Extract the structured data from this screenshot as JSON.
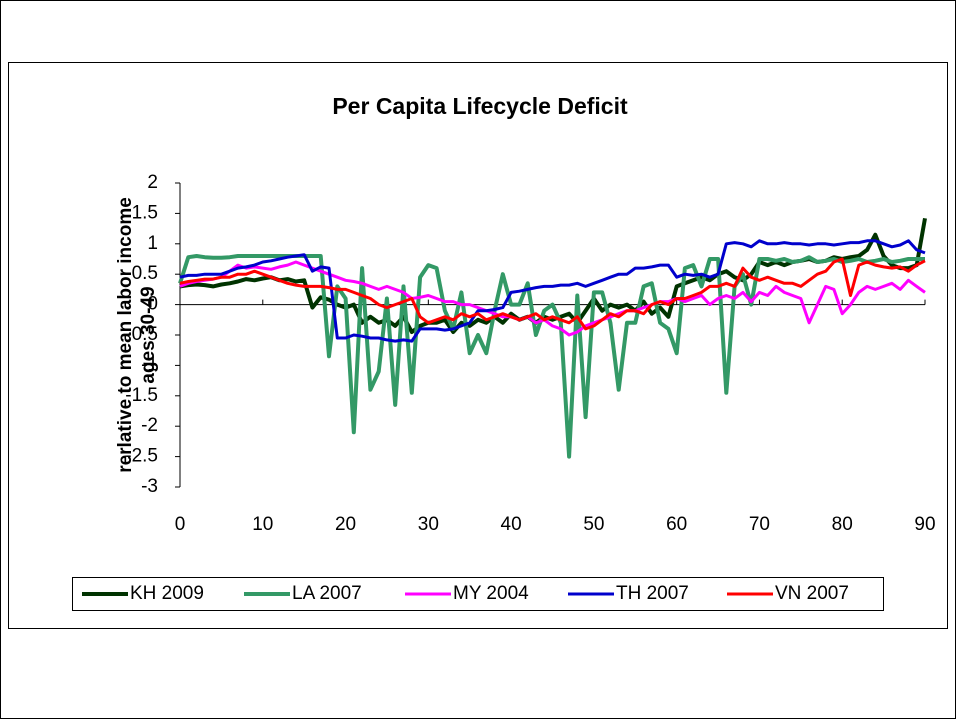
{
  "chart_data": {
    "type": "line",
    "title": "Per Capita Lifecycle Deficit",
    "y_label": [
      "rerlative to mean labor income",
      "ages 30-49"
    ],
    "x": [
      0,
      1,
      2,
      3,
      4,
      5,
      6,
      7,
      8,
      9,
      10,
      11,
      12,
      13,
      14,
      15,
      16,
      17,
      18,
      19,
      20,
      21,
      22,
      23,
      24,
      25,
      26,
      27,
      28,
      29,
      30,
      31,
      32,
      33,
      34,
      35,
      36,
      37,
      38,
      39,
      40,
      41,
      42,
      43,
      44,
      45,
      46,
      47,
      48,
      49,
      50,
      51,
      52,
      53,
      54,
      55,
      56,
      57,
      58,
      59,
      60,
      61,
      62,
      63,
      64,
      65,
      66,
      67,
      68,
      69,
      70,
      71,
      72,
      73,
      74,
      75,
      76,
      77,
      78,
      79,
      80,
      81,
      82,
      83,
      84,
      85,
      86,
      87,
      88,
      89,
      90
    ],
    "xlim": [
      0,
      90
    ],
    "xticks": [
      0,
      10,
      20,
      30,
      40,
      50,
      60,
      70,
      80,
      90
    ],
    "ylim": [
      -3,
      2
    ],
    "yticks": [
      2,
      1.5,
      1,
      0.5,
      0,
      -0.5,
      -1,
      -1.5,
      -2,
      -2.5,
      -3
    ],
    "legend": "bottom",
    "series": [
      {
        "name": "KH 2009",
        "color": "#003300",
        "width": 4,
        "values": [
          0.3,
          0.32,
          0.33,
          0.32,
          0.3,
          0.33,
          0.35,
          0.38,
          0.42,
          0.4,
          0.43,
          0.45,
          0.4,
          0.42,
          0.38,
          0.4,
          -0.05,
          0.12,
          0.08,
          0.0,
          -0.05,
          0.0,
          -0.3,
          -0.2,
          -0.3,
          -0.25,
          -0.35,
          -0.2,
          -0.45,
          -0.35,
          -0.3,
          -0.3,
          -0.25,
          -0.45,
          -0.3,
          -0.35,
          -0.25,
          -0.3,
          -0.2,
          -0.3,
          -0.15,
          -0.25,
          -0.2,
          -0.3,
          -0.2,
          -0.25,
          -0.2,
          -0.15,
          -0.3,
          -0.1,
          0.1,
          -0.1,
          0.0,
          -0.05,
          0.0,
          -0.1,
          0.05,
          -0.15,
          -0.05,
          -0.2,
          0.3,
          0.35,
          0.4,
          0.45,
          0.4,
          0.5,
          0.55,
          0.45,
          0.4,
          0.5,
          0.7,
          0.65,
          0.7,
          0.65,
          0.7,
          0.72,
          0.75,
          0.7,
          0.72,
          0.78,
          0.75,
          0.78,
          0.8,
          0.9,
          1.15,
          0.8,
          0.65,
          0.6,
          0.6,
          0.65,
          1.42
        ]
      },
      {
        "name": "LA 2007",
        "color": "#339966",
        "width": 4,
        "values": [
          0.35,
          0.78,
          0.8,
          0.78,
          0.77,
          0.77,
          0.78,
          0.8,
          0.8,
          0.8,
          0.8,
          0.8,
          0.8,
          0.8,
          0.8,
          0.8,
          0.8,
          0.8,
          -0.85,
          0.3,
          0.1,
          -2.1,
          0.6,
          -1.4,
          -1.1,
          0.1,
          -1.65,
          0.3,
          -1.45,
          0.45,
          0.65,
          0.6,
          -0.1,
          -0.4,
          0.2,
          -0.8,
          -0.5,
          -0.8,
          -0.1,
          0.5,
          0.0,
          0.0,
          0.35,
          -0.5,
          -0.1,
          0.0,
          -0.3,
          -2.5,
          0.15,
          -1.85,
          0.2,
          0.2,
          -0.3,
          -1.4,
          -0.3,
          -0.3,
          0.3,
          0.35,
          -0.3,
          -0.4,
          -0.8,
          0.6,
          0.65,
          0.3,
          0.75,
          0.75,
          -1.45,
          0.3,
          0.5,
          0.0,
          0.75,
          0.75,
          0.72,
          0.75,
          0.7,
          0.72,
          0.78,
          0.7,
          0.72,
          0.75,
          0.7,
          0.72,
          0.75,
          0.7,
          0.72,
          0.75,
          0.7,
          0.72,
          0.75,
          0.75,
          0.75
        ]
      },
      {
        "name": "MY 2004",
        "color": "#ff00ff",
        "width": 3,
        "values": [
          0.3,
          0.35,
          0.38,
          0.4,
          0.42,
          0.45,
          0.55,
          0.65,
          0.6,
          0.62,
          0.6,
          0.58,
          0.62,
          0.65,
          0.7,
          0.65,
          0.6,
          0.55,
          0.5,
          0.45,
          0.4,
          0.38,
          0.35,
          0.3,
          0.25,
          0.3,
          0.25,
          0.2,
          0.1,
          0.12,
          0.15,
          0.1,
          0.05,
          0.05,
          0.0,
          0.0,
          -0.05,
          -0.1,
          -0.15,
          -0.2,
          -0.2,
          -0.25,
          -0.2,
          -0.3,
          -0.25,
          -0.35,
          -0.4,
          -0.5,
          -0.45,
          -0.35,
          -0.3,
          -0.25,
          -0.2,
          -0.15,
          -0.1,
          -0.1,
          -0.05,
          0.0,
          0.05,
          0.05,
          0.1,
          0.05,
          0.1,
          0.15,
          0.0,
          0.1,
          0.15,
          0.1,
          0.2,
          0.05,
          0.2,
          0.15,
          0.3,
          0.2,
          0.15,
          0.1,
          -0.3,
          0.0,
          0.3,
          0.25,
          -0.15,
          0.0,
          0.2,
          0.3,
          0.25,
          0.3,
          0.35,
          0.25,
          0.4,
          0.3,
          0.2
        ]
      },
      {
        "name": "TH 2007",
        "color": "#0000cc",
        "width": 3,
        "values": [
          0.45,
          0.48,
          0.48,
          0.5,
          0.5,
          0.5,
          0.55,
          0.6,
          0.62,
          0.65,
          0.7,
          0.72,
          0.75,
          0.78,
          0.8,
          0.82,
          0.55,
          0.62,
          0.6,
          -0.55,
          -0.55,
          -0.5,
          -0.52,
          -0.55,
          -0.55,
          -0.58,
          -0.6,
          -0.58,
          -0.6,
          -0.4,
          -0.4,
          -0.4,
          -0.42,
          -0.4,
          -0.35,
          -0.3,
          -0.1,
          -0.1,
          -0.08,
          -0.05,
          0.2,
          0.22,
          0.25,
          0.28,
          0.3,
          0.3,
          0.32,
          0.32,
          0.35,
          0.3,
          0.35,
          0.4,
          0.45,
          0.5,
          0.5,
          0.6,
          0.6,
          0.62,
          0.65,
          0.65,
          0.45,
          0.5,
          0.48,
          0.5,
          0.45,
          0.5,
          1.0,
          1.02,
          1.0,
          0.95,
          1.05,
          1.0,
          1.0,
          1.02,
          1.0,
          1.0,
          0.98,
          1.0,
          1.0,
          0.98,
          1.0,
          1.02,
          1.02,
          1.05,
          1.05,
          1.0,
          0.95,
          0.98,
          1.05,
          0.9,
          0.85
        ]
      },
      {
        "name": "VN 2007",
        "color": "#ff0000",
        "width": 3,
        "values": [
          0.35,
          0.38,
          0.4,
          0.42,
          0.42,
          0.45,
          0.45,
          0.5,
          0.5,
          0.55,
          0.5,
          0.45,
          0.4,
          0.35,
          0.32,
          0.3,
          0.3,
          0.3,
          0.28,
          0.25,
          0.25,
          0.2,
          0.15,
          0.1,
          0.0,
          -0.05,
          0.0,
          0.05,
          0.1,
          -0.2,
          -0.3,
          -0.25,
          -0.2,
          -0.25,
          -0.15,
          -0.2,
          -0.15,
          -0.25,
          -0.2,
          -0.15,
          -0.2,
          -0.25,
          -0.2,
          -0.15,
          -0.25,
          -0.2,
          -0.25,
          -0.3,
          -0.2,
          -0.4,
          -0.35,
          -0.25,
          -0.15,
          -0.2,
          -0.1,
          -0.1,
          -0.15,
          0.0,
          0.05,
          0.0,
          0.1,
          0.1,
          0.15,
          0.2,
          0.3,
          0.3,
          0.35,
          0.3,
          0.6,
          0.45,
          0.4,
          0.45,
          0.4,
          0.35,
          0.35,
          0.3,
          0.4,
          0.5,
          0.55,
          0.7,
          0.75,
          0.15,
          0.65,
          0.7,
          0.65,
          0.62,
          0.6,
          0.62,
          0.55,
          0.65,
          0.72
        ]
      }
    ]
  }
}
